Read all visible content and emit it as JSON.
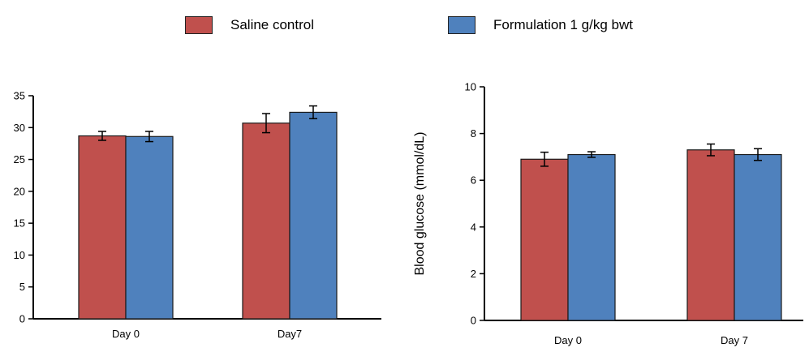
{
  "legend": [
    {
      "name": "Saline control",
      "color": "#c0504d"
    },
    {
      "name": "Formulation 1 g/kg bwt",
      "color": "#4f81bd"
    }
  ],
  "chart_data": [
    {
      "type": "bar",
      "title": "",
      "xlabel": "",
      "ylabel": "",
      "categories": [
        "Day 0",
        "Day7"
      ],
      "ylim": [
        0,
        35
      ],
      "yticks": [
        0,
        5,
        10,
        15,
        20,
        25,
        30,
        35
      ],
      "series": [
        {
          "name": "Saline control",
          "values": [
            28.7,
            30.7
          ],
          "errors": [
            0.7,
            1.5
          ]
        },
        {
          "name": "Formulation 1 g/kg bwt",
          "values": [
            28.6,
            32.4
          ],
          "errors": [
            0.8,
            1.0
          ]
        }
      ],
      "grid": false,
      "legend_position": "top"
    },
    {
      "type": "bar",
      "title": "",
      "xlabel": "",
      "ylabel": "Blood glucose (mmol/dL)",
      "categories": [
        "Day 0",
        "Day 7"
      ],
      "ylim": [
        0,
        10
      ],
      "yticks": [
        0,
        2,
        4,
        6,
        8,
        10
      ],
      "series": [
        {
          "name": "Saline control",
          "values": [
            6.9,
            7.3
          ],
          "errors": [
            0.3,
            0.25
          ]
        },
        {
          "name": "Formulation 1 g/kg bwt",
          "values": [
            7.1,
            7.1
          ],
          "errors": [
            0.12,
            0.25
          ]
        }
      ],
      "grid": false,
      "legend_position": "top"
    }
  ]
}
